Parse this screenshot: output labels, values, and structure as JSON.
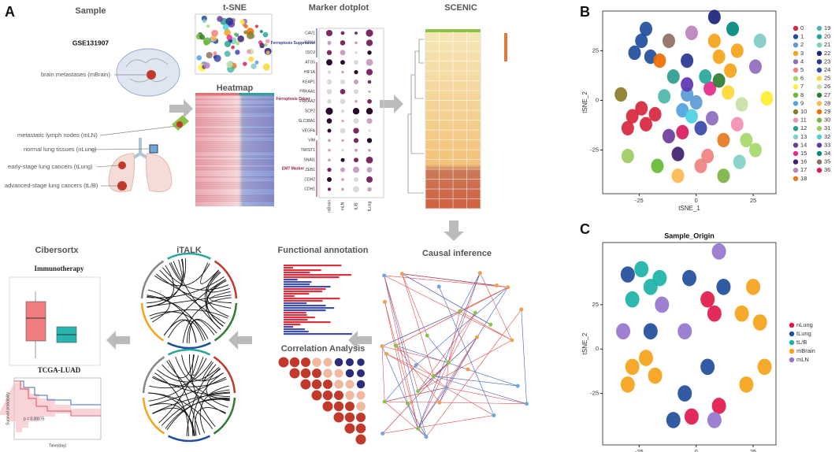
{
  "panel_a": {
    "label": "A",
    "sample": {
      "title": "Sample",
      "dataset": "GSE131907",
      "sites": [
        "brain metastases (mBrain)",
        "metastatic lymph nodes (mLN)",
        "normal lung tissues (nLung)",
        "early-stage lung cancers (tLung)",
        "advanced-stage lung cancers (tL/B)"
      ]
    },
    "tsne_title": "t-SNE",
    "heatmap_title": "Heatmap",
    "dotplot": {
      "title": "Marker dotplot",
      "genes": [
        "CAV1",
        "GPX4",
        "ISCU",
        "ATG5",
        "HIF1A",
        "KEAP1",
        "PRKAA1",
        "PRKAA2",
        "SCP2",
        "SLC38A1",
        "VEGFA",
        "VIM",
        "TWIST1",
        "SNAI1",
        "ZEB1",
        "CDH2",
        "CDH1"
      ],
      "groups": [
        "Ferroptosis Suppressor",
        "Ferroptosis Driver",
        "EMT Marker"
      ],
      "samples": [
        "mBrain",
        "mLN",
        "tL/B",
        "tLung"
      ]
    },
    "scenic_title": "SCENIC",
    "causal_title": "Causal inference",
    "functional_title": "Functional annotation",
    "correlation_title": "Correlation Analysis",
    "italk_title": "iTALK",
    "cibersortx": {
      "title": "Cibersortx",
      "box_title": "Immunotherapy",
      "km_title": "TCGA-LUAD",
      "km_ylabel": "Survival probability",
      "km_xlabel": "Time(day)",
      "pvalue": "p = 0.00075"
    }
  },
  "panel_b": {
    "label": "B",
    "type": "scatter",
    "xlabel": "tSNE_1",
    "ylabel": "tSNE_2",
    "xlim": [
      -41,
      35
    ],
    "ylim": [
      -47,
      45
    ],
    "xticks": [
      -25,
      0,
      25
    ],
    "yticks": [
      -25,
      0,
      25
    ],
    "series": [
      {
        "name": "0",
        "color": "#d7263d",
        "x": [
          -28,
          -22,
          -24,
          -30,
          -18
        ],
        "y": [
          -8,
          -12,
          -4,
          -14,
          -7
        ]
      },
      {
        "name": "1",
        "color": "#1f4e9c",
        "x": [
          -24,
          -20,
          -22,
          -27
        ],
        "y": [
          30,
          22,
          36,
          24
        ]
      },
      {
        "name": "2",
        "color": "#5b9bd5",
        "x": [
          0,
          -4
        ],
        "y": [
          -1,
          3
        ]
      },
      {
        "name": "3",
        "color": "#f5a31a",
        "x": [
          10,
          15,
          8,
          18
        ],
        "y": [
          22,
          15,
          30,
          25
        ]
      },
      {
        "name": "4",
        "color": "#8e6bbf",
        "x": [
          26,
          7
        ],
        "y": [
          17,
          -9
        ]
      },
      {
        "name": "5",
        "color": "#f08080",
        "x": [
          2,
          5
        ],
        "y": [
          -33,
          -28
        ]
      },
      {
        "name": "6",
        "color": "#a6d96a",
        "x": [
          26,
          22
        ],
        "y": [
          -25,
          -20
        ]
      },
      {
        "name": "7",
        "color": "#ffee33",
        "x": [
          31
        ],
        "y": [
          1
        ]
      },
      {
        "name": "8",
        "color": "#66bb33",
        "x": [
          -17
        ],
        "y": [
          -33
        ]
      },
      {
        "name": "9",
        "color": "#4fa3e0",
        "x": [
          -6
        ],
        "y": [
          -5
        ]
      },
      {
        "name": "10",
        "color": "#8c7b2a",
        "x": [
          -33
        ],
        "y": [
          3
        ]
      },
      {
        "name": "11",
        "color": "#f48fb1",
        "x": [
          18
        ],
        "y": [
          -12
        ]
      },
      {
        "name": "12",
        "color": "#2a9d8f",
        "x": [
          -10
        ],
        "y": [
          12
        ]
      },
      {
        "name": "13",
        "color": "#7fd1c7",
        "x": [
          19
        ],
        "y": [
          -31
        ]
      },
      {
        "name": "14",
        "color": "#6a3d9a",
        "x": [
          -12
        ],
        "y": [
          -18
        ]
      },
      {
        "name": "15",
        "color": "#e7298a",
        "x": [
          6
        ],
        "y": [
          6
        ]
      },
      {
        "name": "16",
        "color": "#3f1f6e",
        "x": [
          -8
        ],
        "y": [
          -27
        ]
      },
      {
        "name": "17",
        "color": "#bc80bd",
        "x": [
          -2
        ],
        "y": [
          34
        ]
      },
      {
        "name": "18",
        "color": "#e6791c",
        "x": [
          12
        ],
        "y": [
          -20
        ]
      },
      {
        "name": "19",
        "color": "#4db6ac",
        "x": [
          -14
        ],
        "y": [
          2
        ]
      },
      {
        "name": "20",
        "color": "#26a69a",
        "x": [
          4
        ],
        "y": [
          12
        ]
      },
      {
        "name": "21",
        "color": "#80cbc4",
        "x": [
          28
        ],
        "y": [
          30
        ]
      },
      {
        "name": "22",
        "color": "#1a237e",
        "x": [
          8
        ],
        "y": [
          42
        ]
      },
      {
        "name": "23",
        "color": "#283593",
        "x": [
          -4
        ],
        "y": [
          20
        ]
      },
      {
        "name": "24",
        "color": "#3949ab",
        "x": [
          2
        ],
        "y": [
          -14
        ]
      },
      {
        "name": "25",
        "color": "#fdd835",
        "x": [
          14
        ],
        "y": [
          4
        ]
      },
      {
        "name": "26",
        "color": "#c5e1a5",
        "x": [
          20
        ],
        "y": [
          -2
        ]
      },
      {
        "name": "27",
        "color": "#2e7d32",
        "x": [
          10
        ],
        "y": [
          10
        ]
      },
      {
        "name": "28",
        "color": "#ffb74d",
        "x": [
          -8
        ],
        "y": [
          -38
        ]
      },
      {
        "name": "29",
        "color": "#ef6c00",
        "x": [
          -16
        ],
        "y": [
          20
        ]
      },
      {
        "name": "30",
        "color": "#7cb342",
        "x": [
          12
        ],
        "y": [
          -38
        ]
      },
      {
        "name": "31",
        "color": "#9ccc65",
        "x": [
          -30
        ],
        "y": [
          -28
        ]
      },
      {
        "name": "32",
        "color": "#4dd0e1",
        "x": [
          -2
        ],
        "y": [
          -8
        ]
      },
      {
        "name": "33",
        "color": "#5e35b1",
        "x": [
          -4
        ],
        "y": [
          8
        ]
      },
      {
        "name": "34",
        "color": "#00897b",
        "x": [
          16
        ],
        "y": [
          36
        ]
      },
      {
        "name": "35",
        "color": "#8d6e63",
        "x": [
          -12
        ],
        "y": [
          30
        ]
      },
      {
        "name": "36",
        "color": "#d81b60",
        "x": [
          -6
        ],
        "y": [
          -16
        ]
      }
    ]
  },
  "panel_c": {
    "label": "C",
    "type": "scatter",
    "title": "Sample_Origin",
    "xlabel": "tSNE_1",
    "ylabel": "tSNE_2",
    "xlim": [
      -41,
      35
    ],
    "ylim": [
      -54,
      60
    ],
    "xticks": [
      -25,
      0,
      25
    ],
    "yticks": [
      -25,
      0,
      25
    ],
    "series": [
      {
        "name": "nLung",
        "color": "#e0194b",
        "x": [
          5,
          8,
          -2,
          10
        ],
        "y": [
          28,
          20,
          -38,
          -32
        ]
      },
      {
        "name": "tLung",
        "color": "#1f4e9c",
        "x": [
          -30,
          -3,
          -20,
          -5,
          5,
          -10,
          12
        ],
        "y": [
          42,
          40,
          10,
          -25,
          -10,
          -40,
          35
        ]
      },
      {
        "name": "tL/B",
        "color": "#1bb3a6",
        "x": [
          -20,
          -24,
          -28,
          -16
        ],
        "y": [
          35,
          45,
          28,
          40
        ]
      },
      {
        "name": "mBrain",
        "color": "#f5a31a",
        "x": [
          -28,
          -22,
          -30,
          20,
          28,
          22,
          30,
          -18,
          25
        ],
        "y": [
          -10,
          -5,
          -20,
          20,
          15,
          -20,
          -10,
          -15,
          35
        ]
      },
      {
        "name": "mLN",
        "color": "#9575cd",
        "x": [
          -32,
          10,
          -5,
          8,
          -15
        ],
        "y": [
          10,
          55,
          10,
          -40,
          25
        ]
      }
    ]
  }
}
